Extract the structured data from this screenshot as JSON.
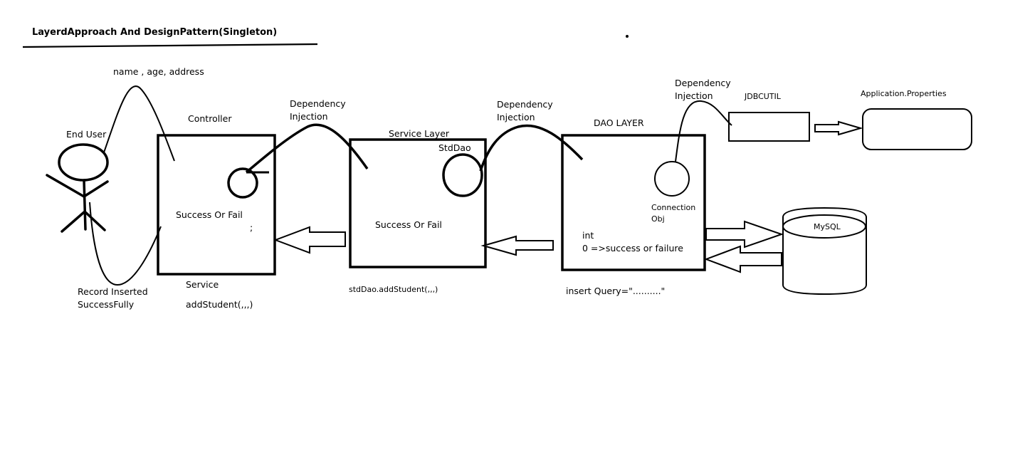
{
  "title": "LayerdApproach And DesignPattern(Singleton)",
  "labels": {
    "user_inputs": "name , age, address",
    "end_user": "End User",
    "controller": "Controller",
    "controller_result": "Success Or Fail",
    "controller_semicolon": ";",
    "di_1_line1": "Dependency",
    "di_1_line2": "Injection",
    "service_layer": "Service Layer",
    "std_dao": "StdDao",
    "service_result": "Success Or Fail",
    "di_2_line1": "Dependency",
    "di_2_line2": "Injection",
    "dao_layer": "DAO LAYER",
    "di_3_line1": "Dependency",
    "di_3_line2": "Injection",
    "jdbcutil": "JDBCUTIL",
    "app_properties": "Application.Properties",
    "connection_line1": "Connection",
    "connection_line2": "Obj",
    "dao_int": "int",
    "dao_result": "0 =>success or failure",
    "mysql": "MySQL",
    "record_line1": "Record Inserted",
    "record_line2": "SuccessFully",
    "service_call_1": "Service",
    "service_call_2": "addStudent(,,,)",
    "dao_call": "stdDao.addStudent(,,,)",
    "insert_query": "insert Query=\"..........\""
  }
}
